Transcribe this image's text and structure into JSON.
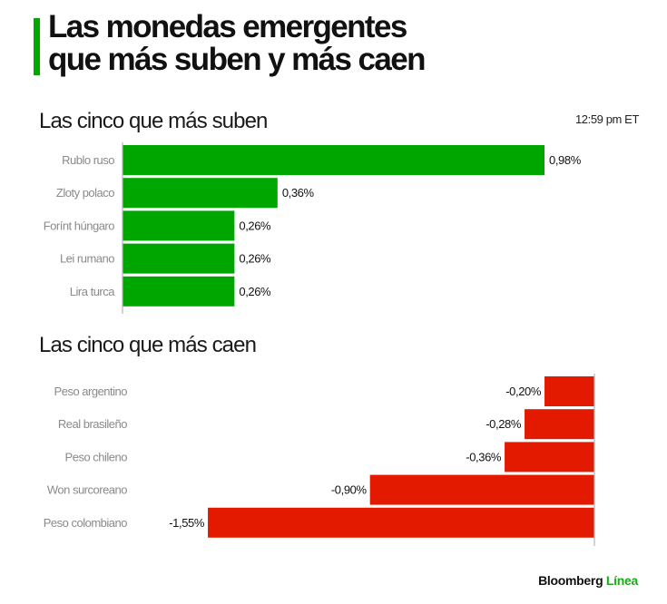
{
  "header": {
    "title_line1": "Las monedas emergentes",
    "title_line2": "que más suben y más caen",
    "accent_color": "#00a800"
  },
  "timestamp": "12:59 pm ET",
  "footer": {
    "brand": "Bloomberg",
    "brand_accent": "Línea"
  },
  "chart_data": [
    {
      "type": "bar",
      "orientation": "horizontal",
      "title": "Las cinco que más suben",
      "categories": [
        "Rublo ruso",
        "Zloty polaco",
        "Forínt húngaro",
        "Lei rumano",
        "Lira turca"
      ],
      "values": [
        0.98,
        0.36,
        0.26,
        0.26,
        0.26
      ],
      "data_labels": [
        "0,98%",
        "0,36%",
        "0,26%",
        "0,26%",
        "0,26%"
      ],
      "unit": "%",
      "color": "#00a600",
      "xlim": [
        0,
        0.98
      ],
      "grid": false
    },
    {
      "type": "bar",
      "orientation": "horizontal",
      "title": "Las cinco que más caen",
      "categories": [
        "Peso argentino",
        "Real brasileño",
        "Peso chileno",
        "Won surcoreano",
        "Peso colombiano"
      ],
      "values": [
        -0.2,
        -0.28,
        -0.36,
        -0.9,
        -1.55
      ],
      "data_labels": [
        "-0,20%",
        "-0,28%",
        "-0,36%",
        "-0,90%",
        "-1,55%"
      ],
      "unit": "%",
      "color": "#e31a00",
      "xlim": [
        -1.55,
        0
      ],
      "grid": false
    }
  ]
}
